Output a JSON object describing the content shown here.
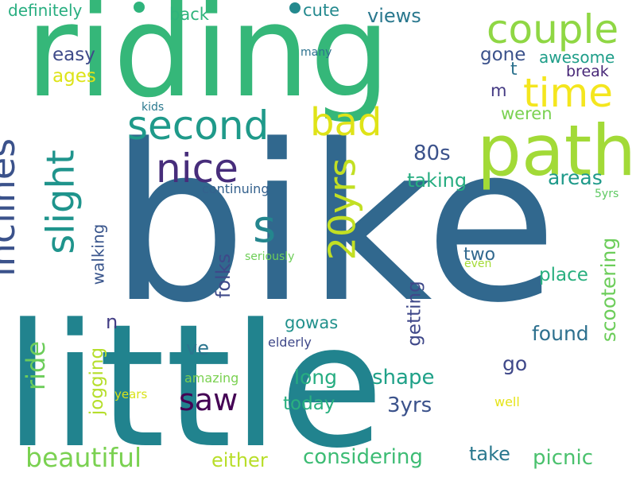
{
  "words": [
    {
      "text": "bike",
      "color": "#31688e"
    },
    {
      "text": "little",
      "color": "#21838e"
    },
    {
      "text": "riding",
      "color": "#35b779"
    },
    {
      "text": "path",
      "color": "#a2da37"
    },
    {
      "text": "couple",
      "color": "#8fd744"
    },
    {
      "text": "time",
      "color": "#f4e61e"
    },
    {
      "text": "second",
      "color": "#1f9a8a"
    },
    {
      "text": "bad",
      "color": "#dfe318"
    },
    {
      "text": "nice",
      "color": "#472d7b"
    },
    {
      "text": "slight",
      "color": "#1f948c"
    },
    {
      "text": "inclines",
      "color": "#3b528b"
    },
    {
      "text": "s",
      "color": "#24868e"
    },
    {
      "text": "20yrs",
      "color": "#c2df23"
    },
    {
      "text": "definitely",
      "color": "#28ae80"
    },
    {
      "text": "back",
      "color": "#2fb47c"
    },
    {
      "text": "cute",
      "color": "#23898e"
    },
    {
      "text": "views",
      "color": "#2a788e"
    },
    {
      "text": "easy",
      "color": "#3e4a89"
    },
    {
      "text": "ages",
      "color": "#dde318"
    },
    {
      "text": "many",
      "color": "#2c728e"
    },
    {
      "text": "gone",
      "color": "#3b528b"
    },
    {
      "text": "awesome",
      "color": "#1f9e89"
    },
    {
      "text": "t",
      "color": "#2c728e"
    },
    {
      "text": "break",
      "color": "#482878"
    },
    {
      "text": "m",
      "color": "#443a83"
    },
    {
      "text": "kids",
      "color": "#2a788e"
    },
    {
      "text": "weren",
      "color": "#7ad151"
    },
    {
      "text": "80s",
      "color": "#3b528b"
    },
    {
      "text": "areas",
      "color": "#1f9a8a"
    },
    {
      "text": "taking",
      "color": "#27ad81"
    },
    {
      "text": "continuing",
      "color": "#34618d"
    },
    {
      "text": "5yrs",
      "color": "#5ec962"
    },
    {
      "text": "ride",
      "color": "#6ccd5a"
    },
    {
      "text": "seriously",
      "color": "#39558c"
    },
    {
      "text": "walking",
      "color": "#3e4989"
    },
    {
      "text": "folks",
      "color": "#6ece58"
    },
    {
      "text": "two",
      "color": "#31688e"
    },
    {
      "text": "even",
      "color": "#a5db36"
    },
    {
      "text": "scootering",
      "color": "#6ccd5a"
    },
    {
      "text": "place",
      "color": "#29af7f"
    },
    {
      "text": "n",
      "color": "#433e85"
    },
    {
      "text": "gowas",
      "color": "#21918c"
    },
    {
      "text": "getting",
      "color": "#3f4889"
    },
    {
      "text": "found",
      "color": "#2d708e"
    },
    {
      "text": "elderly",
      "color": "#3f4889"
    },
    {
      "text": "ve",
      "color": "#2b758e"
    },
    {
      "text": "jogging",
      "color": "#b5de2b"
    },
    {
      "text": "go",
      "color": "#3f4889"
    },
    {
      "text": "amazing",
      "color": "#7ad151"
    },
    {
      "text": "long",
      "color": "#26ad81"
    },
    {
      "text": "shape",
      "color": "#1fa188"
    },
    {
      "text": "years",
      "color": "#d8e219"
    },
    {
      "text": "saw",
      "color": "#440154"
    },
    {
      "text": "today",
      "color": "#2ab07f"
    },
    {
      "text": "3yrs",
      "color": "#3b528b"
    },
    {
      "text": "well",
      "color": "#e5e419"
    },
    {
      "text": "beautiful",
      "color": "#7ad151"
    },
    {
      "text": "either",
      "color": "#b8de29"
    },
    {
      "text": "considering",
      "color": "#3dbc74"
    },
    {
      "text": "take",
      "color": "#2a788e"
    },
    {
      "text": "picnic",
      "color": "#4ac16d"
    }
  ]
}
